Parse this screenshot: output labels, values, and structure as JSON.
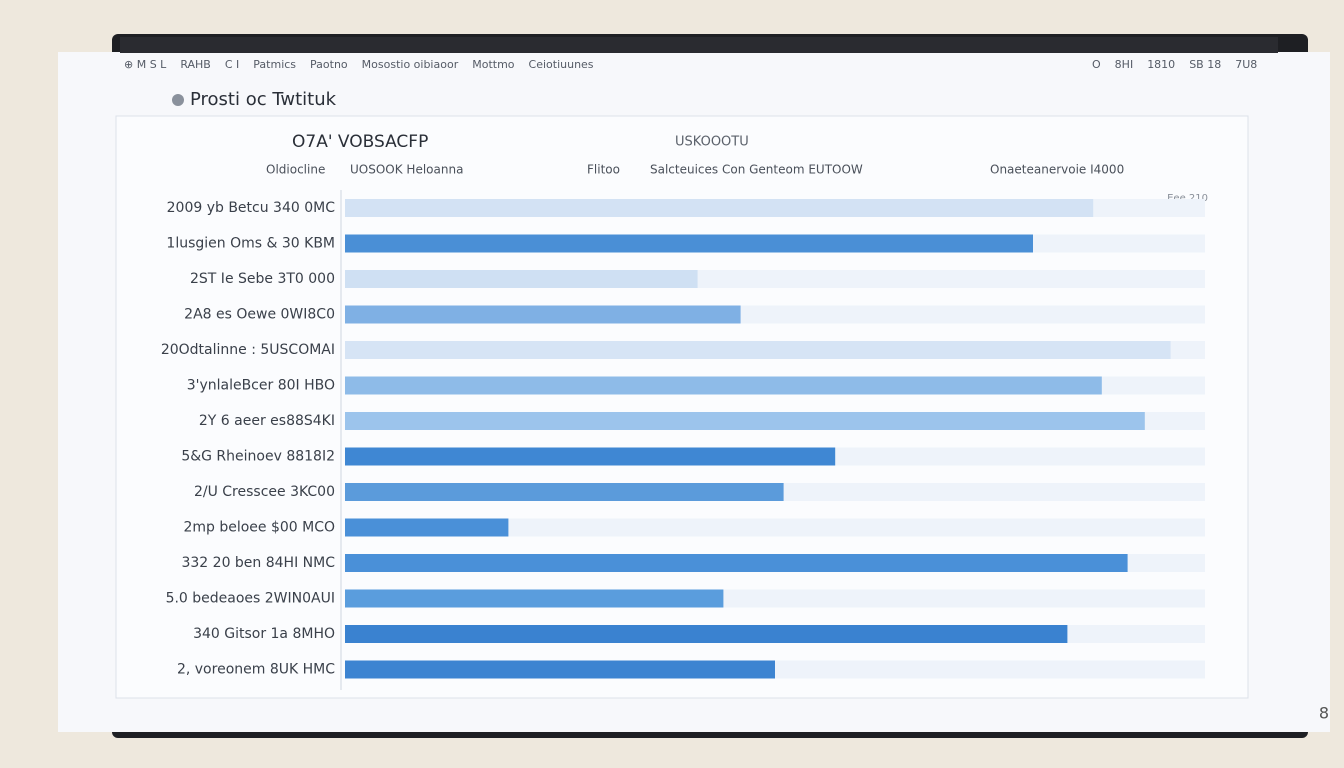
{
  "window": {
    "menu_left": [
      "⊕ M S L",
      "RAHB",
      "C I",
      "Patmics",
      "Paotno",
      "Mosostio oibiaoor",
      "Mottmo",
      "Ceiotiuunes"
    ],
    "menu_right": [
      "O",
      "8HI",
      "1810",
      "SB 18",
      "7U8"
    ],
    "corner": "8"
  },
  "chart_data": {
    "type": "bar",
    "orientation": "horizontal",
    "title": "Prosti oc Twtituk",
    "subtitle": "O7A' VOBSACFP",
    "unit_label": "USKOOOTU",
    "column_headers": [
      "Oldiocline",
      "UOSOOK Heloanna",
      "Flitoo",
      "Salcteuices Con Genteom EUTOOW",
      "Onaeteanervoie I4000"
    ],
    "corner_note": "Eee 210",
    "categories": [
      "2009 yb Betcu  340 0MC",
      "1lusgien Oms &  30 KBM",
      "2ST Ie Sebe  3T0 000",
      "2A8 es Oewe  0WI8C0",
      "20Odtalinne :  5USCOMAI",
      "3'ynlaleBcer  80I HBO",
      "2Y 6 aeer  es88S4KI",
      "5&G Rheinoev  8818I2",
      "2/U Cresscee  3KC00",
      "2mp beloee  $00 MCO",
      "332 20 ben  84HI NMC",
      "5.0 bedeaoes  2WIN0AUI",
      "340 Gitsor  1a 8MHO",
      "2, voreonem  8UK HMC"
    ],
    "values": [
      87,
      80,
      41,
      46,
      96,
      88,
      93,
      57,
      51,
      19,
      91,
      44,
      84,
      50
    ],
    "colors": [
      "#d3e2f4",
      "#4a8fd6",
      "#cfe0f3",
      "#7fb0e4",
      "#d6e4f5",
      "#8ebbe8",
      "#9cc4ec",
      "#3f87d3",
      "#5b9bdb",
      "#4a90d8",
      "#4a90d8",
      "#5a9ddd",
      "#3a82d0",
      "#3d84d1"
    ],
    "xlim": [
      0,
      100
    ]
  }
}
